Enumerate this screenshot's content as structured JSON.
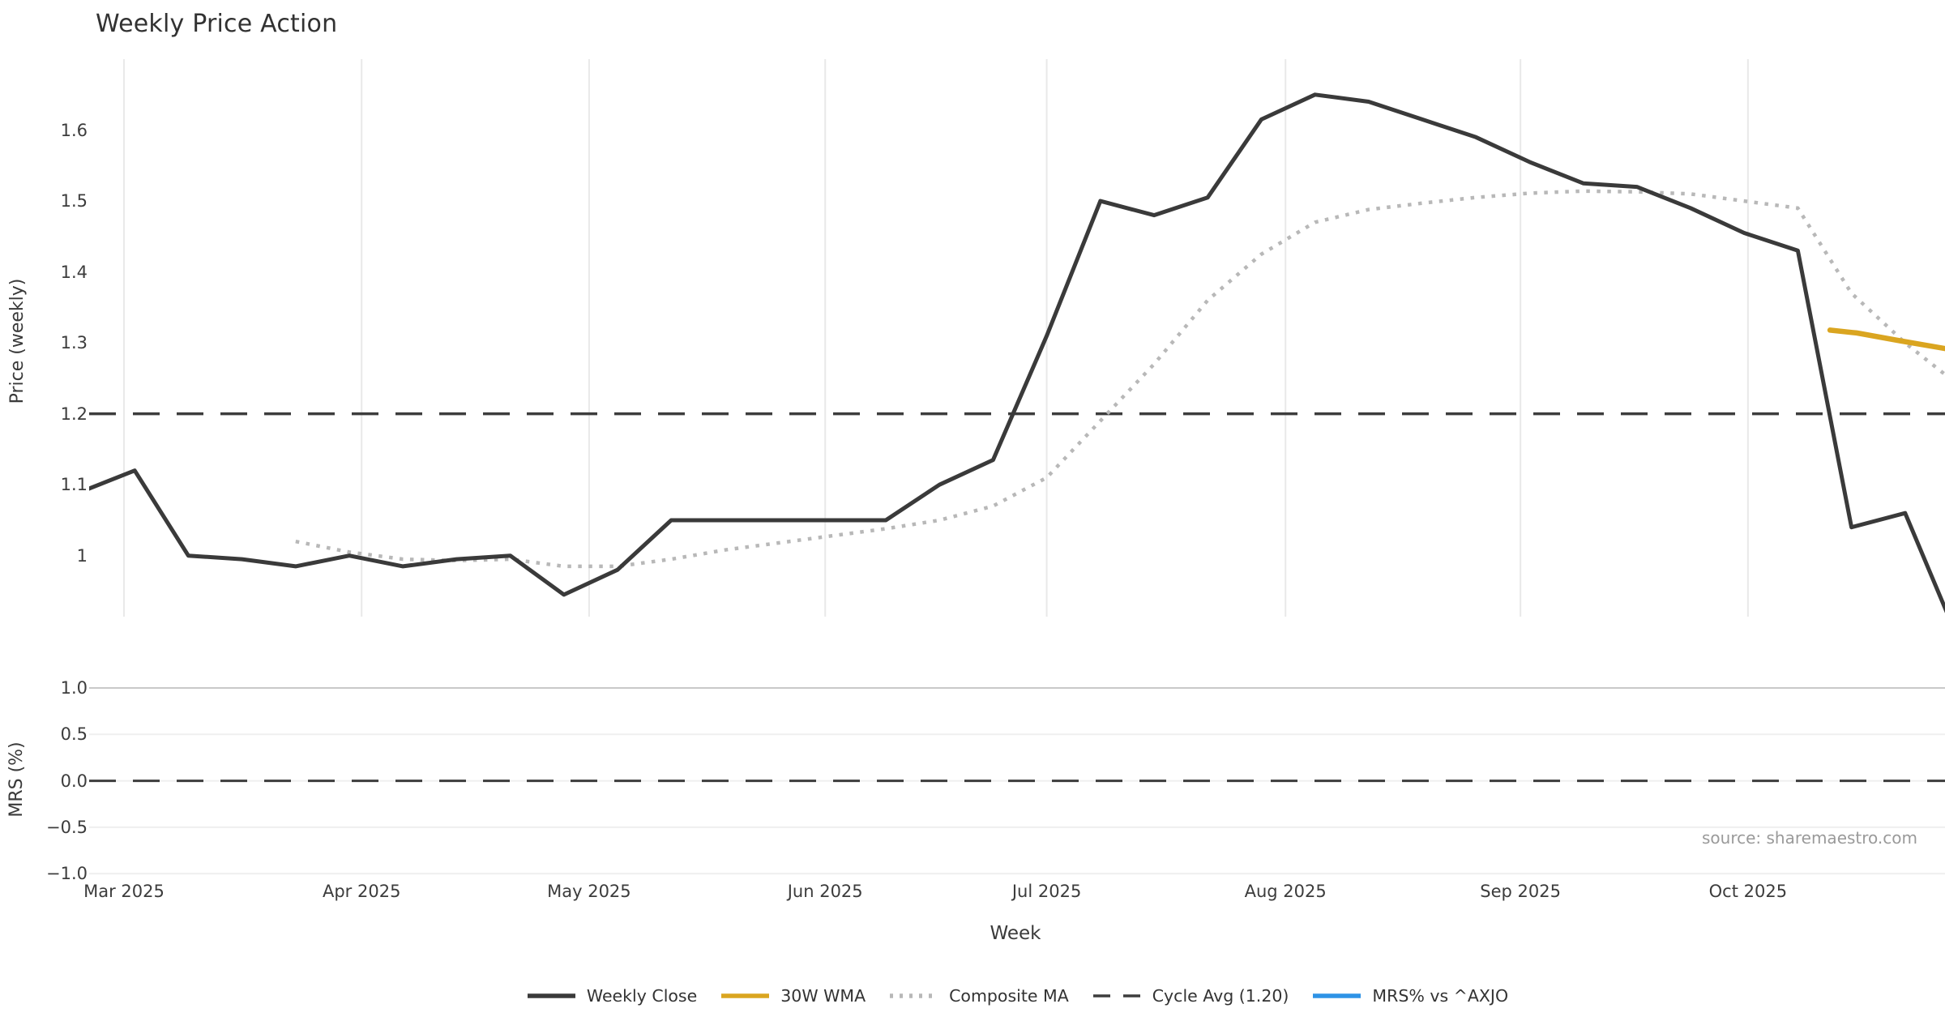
{
  "title": "Weekly Price Action",
  "source_note": "source: sharemaestro.com",
  "x_axis": {
    "label": "Week"
  },
  "colors": {
    "weekly_close": "#3a3a3a",
    "wma_30w": "#DAA520",
    "composite_ma": "#b8b8b8",
    "cycle_avg_dash": "#3d3d3d",
    "mrs_blue": "#2E93E6",
    "grid_vertical": "#e9e9e9",
    "grid_horizontal": "#efefef",
    "grid_horizontal_top": "#c9c9c9",
    "text": "#333333",
    "muted_text": "#9a9a9a"
  },
  "legend": {
    "items": [
      {
        "label": "Weekly Close",
        "color": "#3a3a3a",
        "style": "solid"
      },
      {
        "label": "30W WMA",
        "color": "#DAA520",
        "style": "solid"
      },
      {
        "label": "Composite MA",
        "color": "#b8b8b8",
        "style": "dotted"
      },
      {
        "label": "Cycle Avg (1.20)",
        "color": "#3d3d3d",
        "style": "dashed"
      },
      {
        "label": "MRS% vs ^AXJO",
        "color": "#2E93E6",
        "style": "solid"
      }
    ]
  },
  "chart_data": [
    {
      "panel": "price",
      "type": "line",
      "title": "Weekly Price Action",
      "xlabel": "Week",
      "ylabel": "Price (weekly)",
      "x_unit": "week index (weekly points, Mar-Oct 2025)",
      "xlim": [
        0.151,
        34.743
      ],
      "ylim": [
        0.914,
        1.7
      ],
      "grid": "vertical-months-only",
      "y_ticks": [
        {
          "label": "1.6",
          "value": 1.6
        },
        {
          "label": "1.5",
          "value": 1.5
        },
        {
          "label": "1.4",
          "value": 1.4
        },
        {
          "label": "1.3",
          "value": 1.3
        },
        {
          "label": "1.2",
          "value": 1.2
        },
        {
          "label": "1.1",
          "value": 1.1
        },
        {
          "label": "1",
          "value": 1.0
        }
      ],
      "x_ticks": [
        {
          "label": "Mar 2025",
          "pos": 0.8
        },
        {
          "label": "Apr 2025",
          "pos": 5.23
        },
        {
          "label": "May 2025",
          "pos": 9.47
        },
        {
          "label": "Jun 2025",
          "pos": 13.87
        },
        {
          "label": "Jul 2025",
          "pos": 18.0
        },
        {
          "label": "Aug 2025",
          "pos": 22.45
        },
        {
          "label": "Sep 2025",
          "pos": 26.83
        },
        {
          "label": "Oct 2025",
          "pos": 31.07
        }
      ],
      "series": [
        {
          "name": "Weekly Close",
          "style": "solid",
          "color": "#3a3a3a",
          "start_index": 0,
          "values": [
            1.09,
            1.12,
            1.0,
            0.995,
            0.985,
            1.0,
            0.985,
            0.995,
            1.0,
            0.945,
            0.98,
            1.05,
            1.05,
            1.05,
            1.05,
            1.05,
            1.1,
            1.135,
            1.31,
            1.5,
            1.48,
            1.505,
            1.615,
            1.65,
            1.64,
            1.615,
            1.59,
            1.555,
            1.525,
            1.52,
            1.49,
            1.455,
            1.43,
            1.04,
            1.06,
            0.88
          ]
        },
        {
          "name": "Composite MA",
          "style": "dotted",
          "color": "#b8b8b8",
          "start_index": 4,
          "values": [
            1.02,
            1.005,
            0.995,
            0.993,
            0.995,
            0.985,
            0.985,
            0.995,
            1.008,
            1.018,
            1.028,
            1.038,
            1.05,
            1.07,
            1.11,
            1.19,
            1.27,
            1.36,
            1.425,
            1.47,
            1.488,
            1.497,
            1.505,
            1.511,
            1.514,
            1.513,
            1.51,
            1.5,
            1.49,
            1.37,
            1.3,
            1.24
          ]
        },
        {
          "name": "30W WMA",
          "style": "solid",
          "color": "#DAA520",
          "points": [
            [
              32.6,
              1.318
            ],
            [
              33.1,
              1.314
            ],
            [
              33.9,
              1.303
            ],
            [
              34.74,
              1.292
            ]
          ]
        },
        {
          "name": "Cycle Avg (1.20)",
          "style": "dashed",
          "color": "#3d3d3d",
          "constant": 1.2
        }
      ]
    },
    {
      "panel": "mrs",
      "type": "line",
      "ylabel": "MRS (%)",
      "xlim": [
        0.151,
        34.743
      ],
      "ylim": [
        -1.06,
        1.0
      ],
      "grid": "horizontal-only",
      "y_ticks": [
        {
          "label": "1.0",
          "value": 1.0
        },
        {
          "label": "0.5",
          "value": 0.5
        },
        {
          "label": "0.0",
          "value": 0.0
        },
        {
          "label": "−0.5",
          "value": -0.5
        },
        {
          "label": "−1.0",
          "value": -1.0
        }
      ],
      "series": [
        {
          "name": "MRS% vs ^AXJO",
          "style": "solid",
          "color": "#2E93E6",
          "values": [],
          "note": "series not visible within plotted range"
        },
        {
          "name": "Zero line",
          "style": "dashed",
          "color": "#3d3d3d",
          "constant": 0.0
        }
      ]
    }
  ]
}
